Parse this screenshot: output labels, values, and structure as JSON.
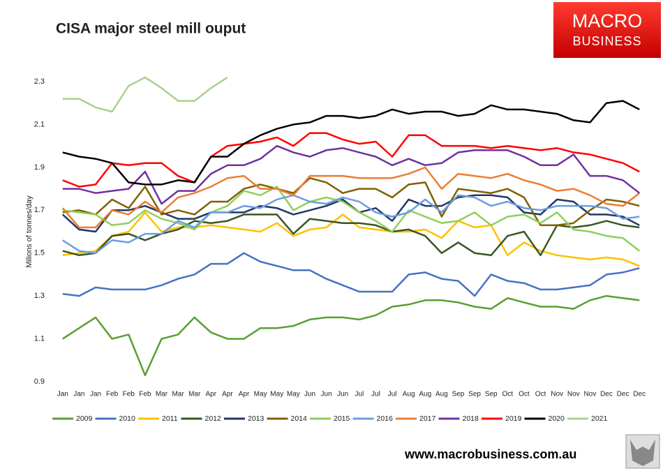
{
  "chart_data": {
    "type": "line",
    "title": "CISA major steel mill ouput",
    "y_label": "Milions of tonnes/day",
    "categories": [
      "Jan",
      "Jan",
      "Jan",
      "Feb",
      "Feb",
      "Feb",
      "Mar",
      "Mar",
      "Mar",
      "Apr",
      "Apr",
      "Apr",
      "May",
      "May",
      "May",
      "Jun",
      "Jun",
      "Jun",
      "Jul",
      "Jul",
      "Jul",
      "Aug",
      "Aug",
      "Aug",
      "Sep",
      "Sep",
      "Sep",
      "Oct",
      "Oct",
      "Oct",
      "Nov",
      "Nov",
      "Nov",
      "Dec",
      "Dec",
      "Dec"
    ],
    "ylim": [
      0.9,
      2.3
    ],
    "yticks": [
      0.9,
      1.1,
      1.3,
      1.5,
      1.7,
      1.9,
      2.1,
      2.3
    ],
    "grid": false,
    "legend": "bottom",
    "series": [
      {
        "name": "2009",
        "color": "#5a9e32",
        "values": [
          1.1,
          1.15,
          1.2,
          1.1,
          1.12,
          0.93,
          1.1,
          1.12,
          1.2,
          1.13,
          1.1,
          1.1,
          1.15,
          1.15,
          1.16,
          1.19,
          1.2,
          1.2,
          1.19,
          1.21,
          1.25,
          1.26,
          1.28,
          1.28,
          1.27,
          1.25,
          1.24,
          1.29,
          1.27,
          1.25,
          1.25,
          1.24,
          1.28,
          1.3,
          1.29,
          1.28
        ]
      },
      {
        "name": "2010",
        "color": "#4472c4",
        "values": [
          1.31,
          1.3,
          1.34,
          1.33,
          1.33,
          1.33,
          1.35,
          1.38,
          1.4,
          1.45,
          1.45,
          1.5,
          1.46,
          1.44,
          1.42,
          1.42,
          1.38,
          1.35,
          1.32,
          1.32,
          1.32,
          1.4,
          1.41,
          1.38,
          1.37,
          1.3,
          1.4,
          1.37,
          1.36,
          1.33,
          1.33,
          1.34,
          1.35,
          1.4,
          1.41,
          1.43
        ]
      },
      {
        "name": "2011",
        "color": "#ffc000",
        "values": [
          1.49,
          1.5,
          1.51,
          1.58,
          1.6,
          1.69,
          1.6,
          1.62,
          1.62,
          1.63,
          1.62,
          1.61,
          1.6,
          1.64,
          1.58,
          1.61,
          1.62,
          1.68,
          1.62,
          1.61,
          1.6,
          1.6,
          1.61,
          1.57,
          1.65,
          1.62,
          1.63,
          1.49,
          1.55,
          1.51,
          1.49,
          1.48,
          1.47,
          1.48,
          1.47,
          1.44
        ]
      },
      {
        "name": "2012",
        "color": "#375623",
        "values": [
          1.51,
          1.49,
          1.5,
          1.58,
          1.59,
          1.56,
          1.59,
          1.61,
          1.65,
          1.64,
          1.65,
          1.68,
          1.68,
          1.68,
          1.59,
          1.66,
          1.65,
          1.64,
          1.64,
          1.63,
          1.6,
          1.61,
          1.58,
          1.5,
          1.55,
          1.5,
          1.49,
          1.58,
          1.6,
          1.49,
          1.63,
          1.62,
          1.63,
          1.65,
          1.63,
          1.62
        ]
      },
      {
        "name": "2013",
        "color": "#1f3864",
        "values": [
          1.68,
          1.61,
          1.6,
          1.7,
          1.7,
          1.72,
          1.69,
          1.66,
          1.66,
          1.69,
          1.69,
          1.69,
          1.72,
          1.71,
          1.68,
          1.7,
          1.72,
          1.75,
          1.69,
          1.71,
          1.65,
          1.75,
          1.72,
          1.72,
          1.76,
          1.77,
          1.77,
          1.76,
          1.69,
          1.68,
          1.75,
          1.74,
          1.68,
          1.68,
          1.67,
          1.63
        ]
      },
      {
        "name": "2014",
        "color": "#806000",
        "values": [
          1.69,
          1.7,
          1.68,
          1.75,
          1.71,
          1.81,
          1.68,
          1.7,
          1.68,
          1.74,
          1.74,
          1.8,
          1.82,
          1.8,
          1.78,
          1.85,
          1.83,
          1.78,
          1.8,
          1.8,
          1.76,
          1.82,
          1.83,
          1.67,
          1.8,
          1.79,
          1.78,
          1.8,
          1.76,
          1.63,
          1.63,
          1.64,
          1.7,
          1.75,
          1.74,
          1.72
        ]
      },
      {
        "name": "2015",
        "color": "#8fcf5a",
        "values": [
          1.7,
          1.69,
          1.68,
          1.63,
          1.64,
          1.7,
          1.66,
          1.64,
          1.61,
          1.69,
          1.72,
          1.79,
          1.77,
          1.81,
          1.7,
          1.74,
          1.76,
          1.74,
          1.69,
          1.65,
          1.6,
          1.7,
          1.67,
          1.64,
          1.65,
          1.69,
          1.63,
          1.67,
          1.68,
          1.64,
          1.69,
          1.61,
          1.6,
          1.58,
          1.57,
          1.51
        ]
      },
      {
        "name": "2016",
        "color": "#6d9ce0",
        "values": [
          1.56,
          1.51,
          1.5,
          1.56,
          1.55,
          1.59,
          1.59,
          1.65,
          1.62,
          1.69,
          1.69,
          1.72,
          1.71,
          1.75,
          1.77,
          1.74,
          1.73,
          1.76,
          1.74,
          1.69,
          1.67,
          1.69,
          1.75,
          1.69,
          1.77,
          1.76,
          1.72,
          1.74,
          1.71,
          1.7,
          1.72,
          1.72,
          1.72,
          1.71,
          1.66,
          1.67
        ]
      },
      {
        "name": "2017",
        "color": "#ed7d31",
        "values": [
          1.71,
          1.62,
          1.62,
          1.7,
          1.68,
          1.74,
          1.69,
          1.76,
          1.78,
          1.81,
          1.85,
          1.86,
          1.8,
          1.8,
          1.77,
          1.86,
          1.86,
          1.86,
          1.85,
          1.85,
          1.85,
          1.87,
          1.9,
          1.8,
          1.87,
          1.86,
          1.85,
          1.87,
          1.84,
          1.82,
          1.79,
          1.8,
          1.77,
          1.73,
          1.72,
          1.78
        ]
      },
      {
        "name": "2018",
        "color": "#7030a0",
        "values": [
          1.8,
          1.8,
          1.78,
          1.79,
          1.8,
          1.88,
          1.73,
          1.79,
          1.79,
          1.87,
          1.91,
          1.91,
          1.94,
          2.0,
          1.97,
          1.95,
          1.98,
          1.99,
          1.97,
          1.95,
          1.91,
          1.94,
          1.91,
          1.92,
          1.97,
          1.98,
          1.98,
          1.98,
          1.95,
          1.91,
          1.91,
          1.96,
          1.86,
          1.86,
          1.84,
          1.78
        ]
      },
      {
        "name": "2019",
        "color": "#ff0000",
        "values": [
          1.84,
          1.81,
          1.82,
          1.92,
          1.91,
          1.92,
          1.92,
          1.86,
          1.83,
          1.95,
          2.0,
          2.01,
          2.02,
          2.04,
          2.0,
          2.06,
          2.06,
          2.03,
          2.01,
          2.02,
          1.95,
          2.05,
          2.05,
          2.0,
          2.0,
          2.0,
          1.99,
          2.0,
          1.99,
          1.98,
          1.99,
          1.97,
          1.96,
          1.94,
          1.92,
          1.88
        ]
      },
      {
        "name": "2020",
        "color": "#000000",
        "values": [
          1.97,
          1.95,
          1.94,
          1.92,
          1.83,
          1.82,
          1.82,
          1.84,
          1.83,
          1.95,
          1.95,
          2.01,
          2.05,
          2.08,
          2.1,
          2.11,
          2.14,
          2.14,
          2.13,
          2.14,
          2.17,
          2.15,
          2.16,
          2.16,
          2.14,
          2.15,
          2.19,
          2.17,
          2.17,
          2.16,
          2.15,
          2.12,
          2.11,
          2.2,
          2.21,
          2.17
        ]
      },
      {
        "name": "2021",
        "color": "#a9d18e",
        "values": [
          2.22,
          2.22,
          2.18,
          2.16,
          2.28,
          2.32,
          2.27,
          2.21,
          2.21,
          2.27,
          2.32,
          null,
          null,
          null,
          null,
          null,
          null,
          null,
          null,
          null,
          null,
          null,
          null,
          null,
          null,
          null,
          null,
          null,
          null,
          null,
          null,
          null,
          null,
          null,
          null,
          null
        ]
      }
    ]
  },
  "logo": {
    "line1": "MACRO",
    "line2": "BUSINESS"
  },
  "footer": "www.macrobusiness.com.au"
}
